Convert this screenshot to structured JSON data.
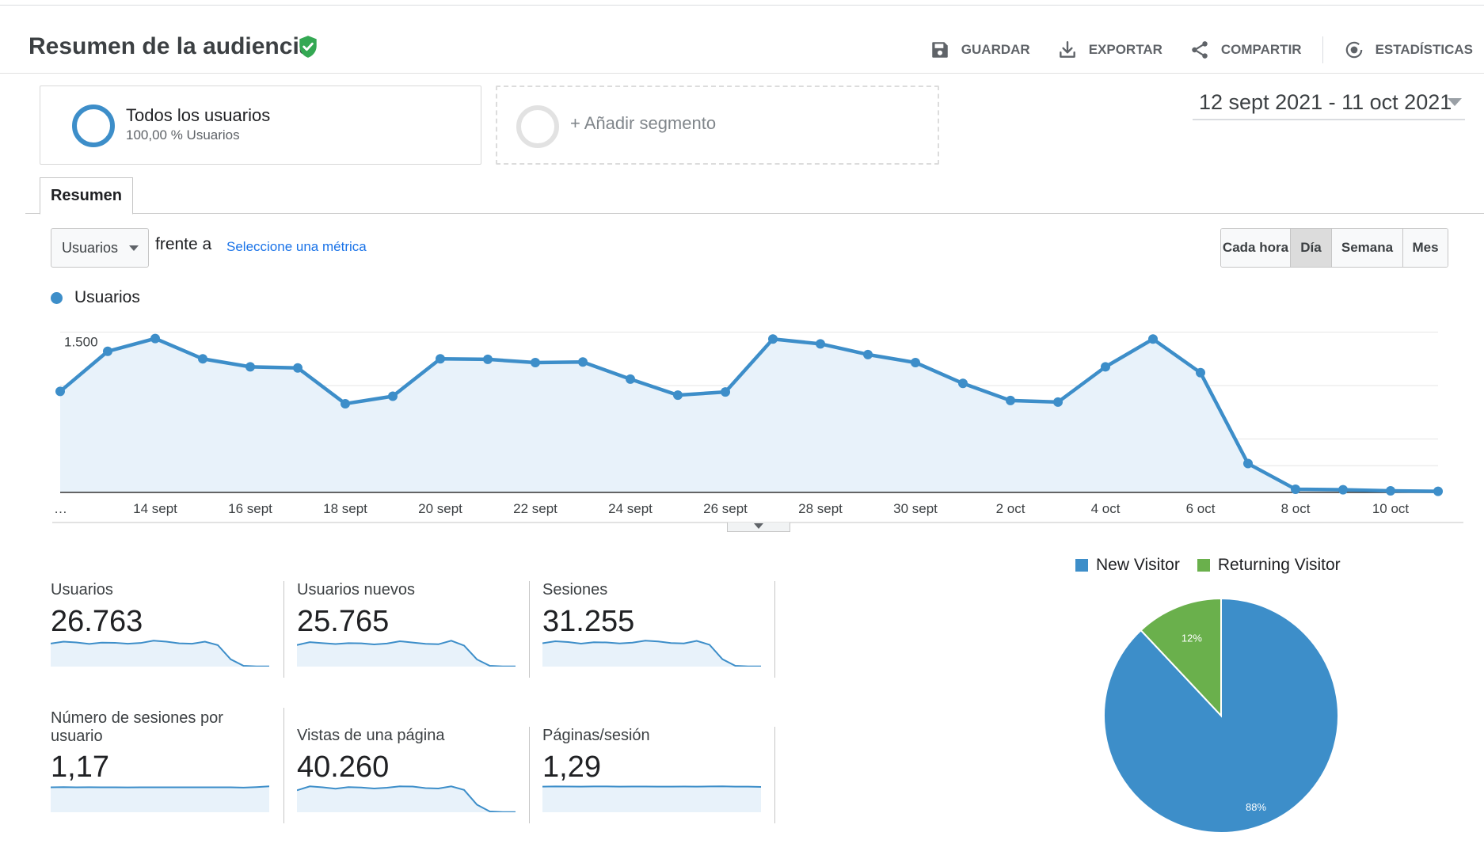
{
  "header": {
    "title": "Resumen de la audiencia",
    "actions": [
      {
        "label": "GUARDAR",
        "icon": "save-icon"
      },
      {
        "label": "EXPORTAR",
        "icon": "download-icon"
      },
      {
        "label": "COMPARTIR",
        "icon": "share-icon"
      },
      {
        "label": "ESTADÍSTICAS",
        "icon": "insights-icon"
      }
    ]
  },
  "segments": {
    "all": {
      "name": "Todos los usuarios",
      "sub": "100,00 % Usuarios"
    },
    "add": {
      "label": "+ Añadir segmento"
    }
  },
  "date_range": "12 sept 2021 - 11 oct 2021",
  "tabs": [
    {
      "label": "Resumen"
    }
  ],
  "controls": {
    "metric_select": "Usuarios",
    "versus": "frente a",
    "select_metric": "Seleccione una métrica",
    "granularity": [
      {
        "label": "Cada hora",
        "active": false
      },
      {
        "label": "Día",
        "active": true
      },
      {
        "label": "Semana",
        "active": false
      },
      {
        "label": "Mes",
        "active": false
      }
    ]
  },
  "colors": {
    "primary": "#3d8ec9",
    "fill": "#e8f2fa",
    "returning": "#6ab04c"
  },
  "chart_data": [
    {
      "type": "line",
      "legend": "Usuarios",
      "x": [
        "12 sept",
        "13 sept",
        "14 sept",
        "15 sept",
        "16 sept",
        "17 sept",
        "18 sept",
        "19 sept",
        "20 sept",
        "21 sept",
        "22 sept",
        "23 sept",
        "24 sept",
        "25 sept",
        "26 sept",
        "27 sept",
        "28 sept",
        "29 sept",
        "30 sept",
        "1 oct",
        "2 oct",
        "3 oct",
        "4 oct",
        "5 oct",
        "6 oct",
        "7 oct",
        "8 oct",
        "9 oct",
        "10 oct",
        "11 oct"
      ],
      "values": [
        945,
        1320,
        1440,
        1250,
        1175,
        1165,
        830,
        900,
        1250,
        1245,
        1215,
        1220,
        1060,
        910,
        940,
        1435,
        1390,
        1290,
        1215,
        1020,
        860,
        845,
        1175,
        1435,
        1120,
        270,
        30,
        25,
        15,
        10
      ],
      "x_ticks": [
        "…",
        "14 sept",
        "16 sept",
        "18 sept",
        "20 sept",
        "22 sept",
        "24 sept",
        "26 sept",
        "28 sept",
        "30 sept",
        "2 oct",
        "4 oct",
        "6 oct",
        "8 oct",
        "10 oct"
      ],
      "y_ticks": [
        "500",
        "1.000",
        "1.500"
      ],
      "ylim": [
        0,
        1600
      ],
      "grid": true
    },
    {
      "type": "pie",
      "series": [
        {
          "name": "New Visitor",
          "value": 88,
          "label": "88%",
          "color": "#3d8ec9"
        },
        {
          "name": "Returning Visitor",
          "value": 12,
          "label": "12%",
          "color": "#6ab04c"
        }
      ]
    }
  ],
  "metrics": [
    {
      "label": "Usuarios",
      "value": "26.763",
      "spark": [
        1200,
        1300,
        1260,
        1180,
        1250,
        1240,
        1190,
        1230,
        1350,
        1300,
        1210,
        1190,
        1300,
        1120,
        380,
        40,
        10,
        10
      ]
    },
    {
      "label": "Usuarios nuevos",
      "value": "25.765",
      "spark": [
        1150,
        1300,
        1250,
        1200,
        1250,
        1240,
        1180,
        1230,
        1350,
        1280,
        1210,
        1190,
        1380,
        1120,
        380,
        40,
        10,
        10
      ]
    },
    {
      "label": "Sesiones",
      "value": "31.255",
      "spark": [
        1200,
        1300,
        1260,
        1180,
        1250,
        1240,
        1190,
        1230,
        1330,
        1290,
        1210,
        1190,
        1320,
        1120,
        380,
        40,
        10,
        10
      ]
    },
    {
      "label": "Número de sesiones por usuario",
      "value": "1,17",
      "spark": [
        1000,
        1010,
        1000,
        1005,
        1000,
        1000,
        998,
        1002,
        1000,
        1001,
        1000,
        1000,
        1000,
        1000,
        1000,
        990,
        1010,
        1040
      ]
    },
    {
      "label": "Vistas de una página",
      "value": "40.260",
      "spark": [
        1100,
        1300,
        1250,
        1180,
        1260,
        1240,
        1190,
        1230,
        1300,
        1290,
        1210,
        1190,
        1300,
        1120,
        380,
        40,
        10,
        10
      ]
    },
    {
      "label": "Páginas/sesión",
      "value": "1,29",
      "spark": [
        1000,
        1010,
        1005,
        1000,
        1010,
        1008,
        1000,
        1006,
        1004,
        1000,
        1002,
        1006,
        1000,
        1008,
        1012,
        1000,
        1002,
        990
      ]
    }
  ]
}
